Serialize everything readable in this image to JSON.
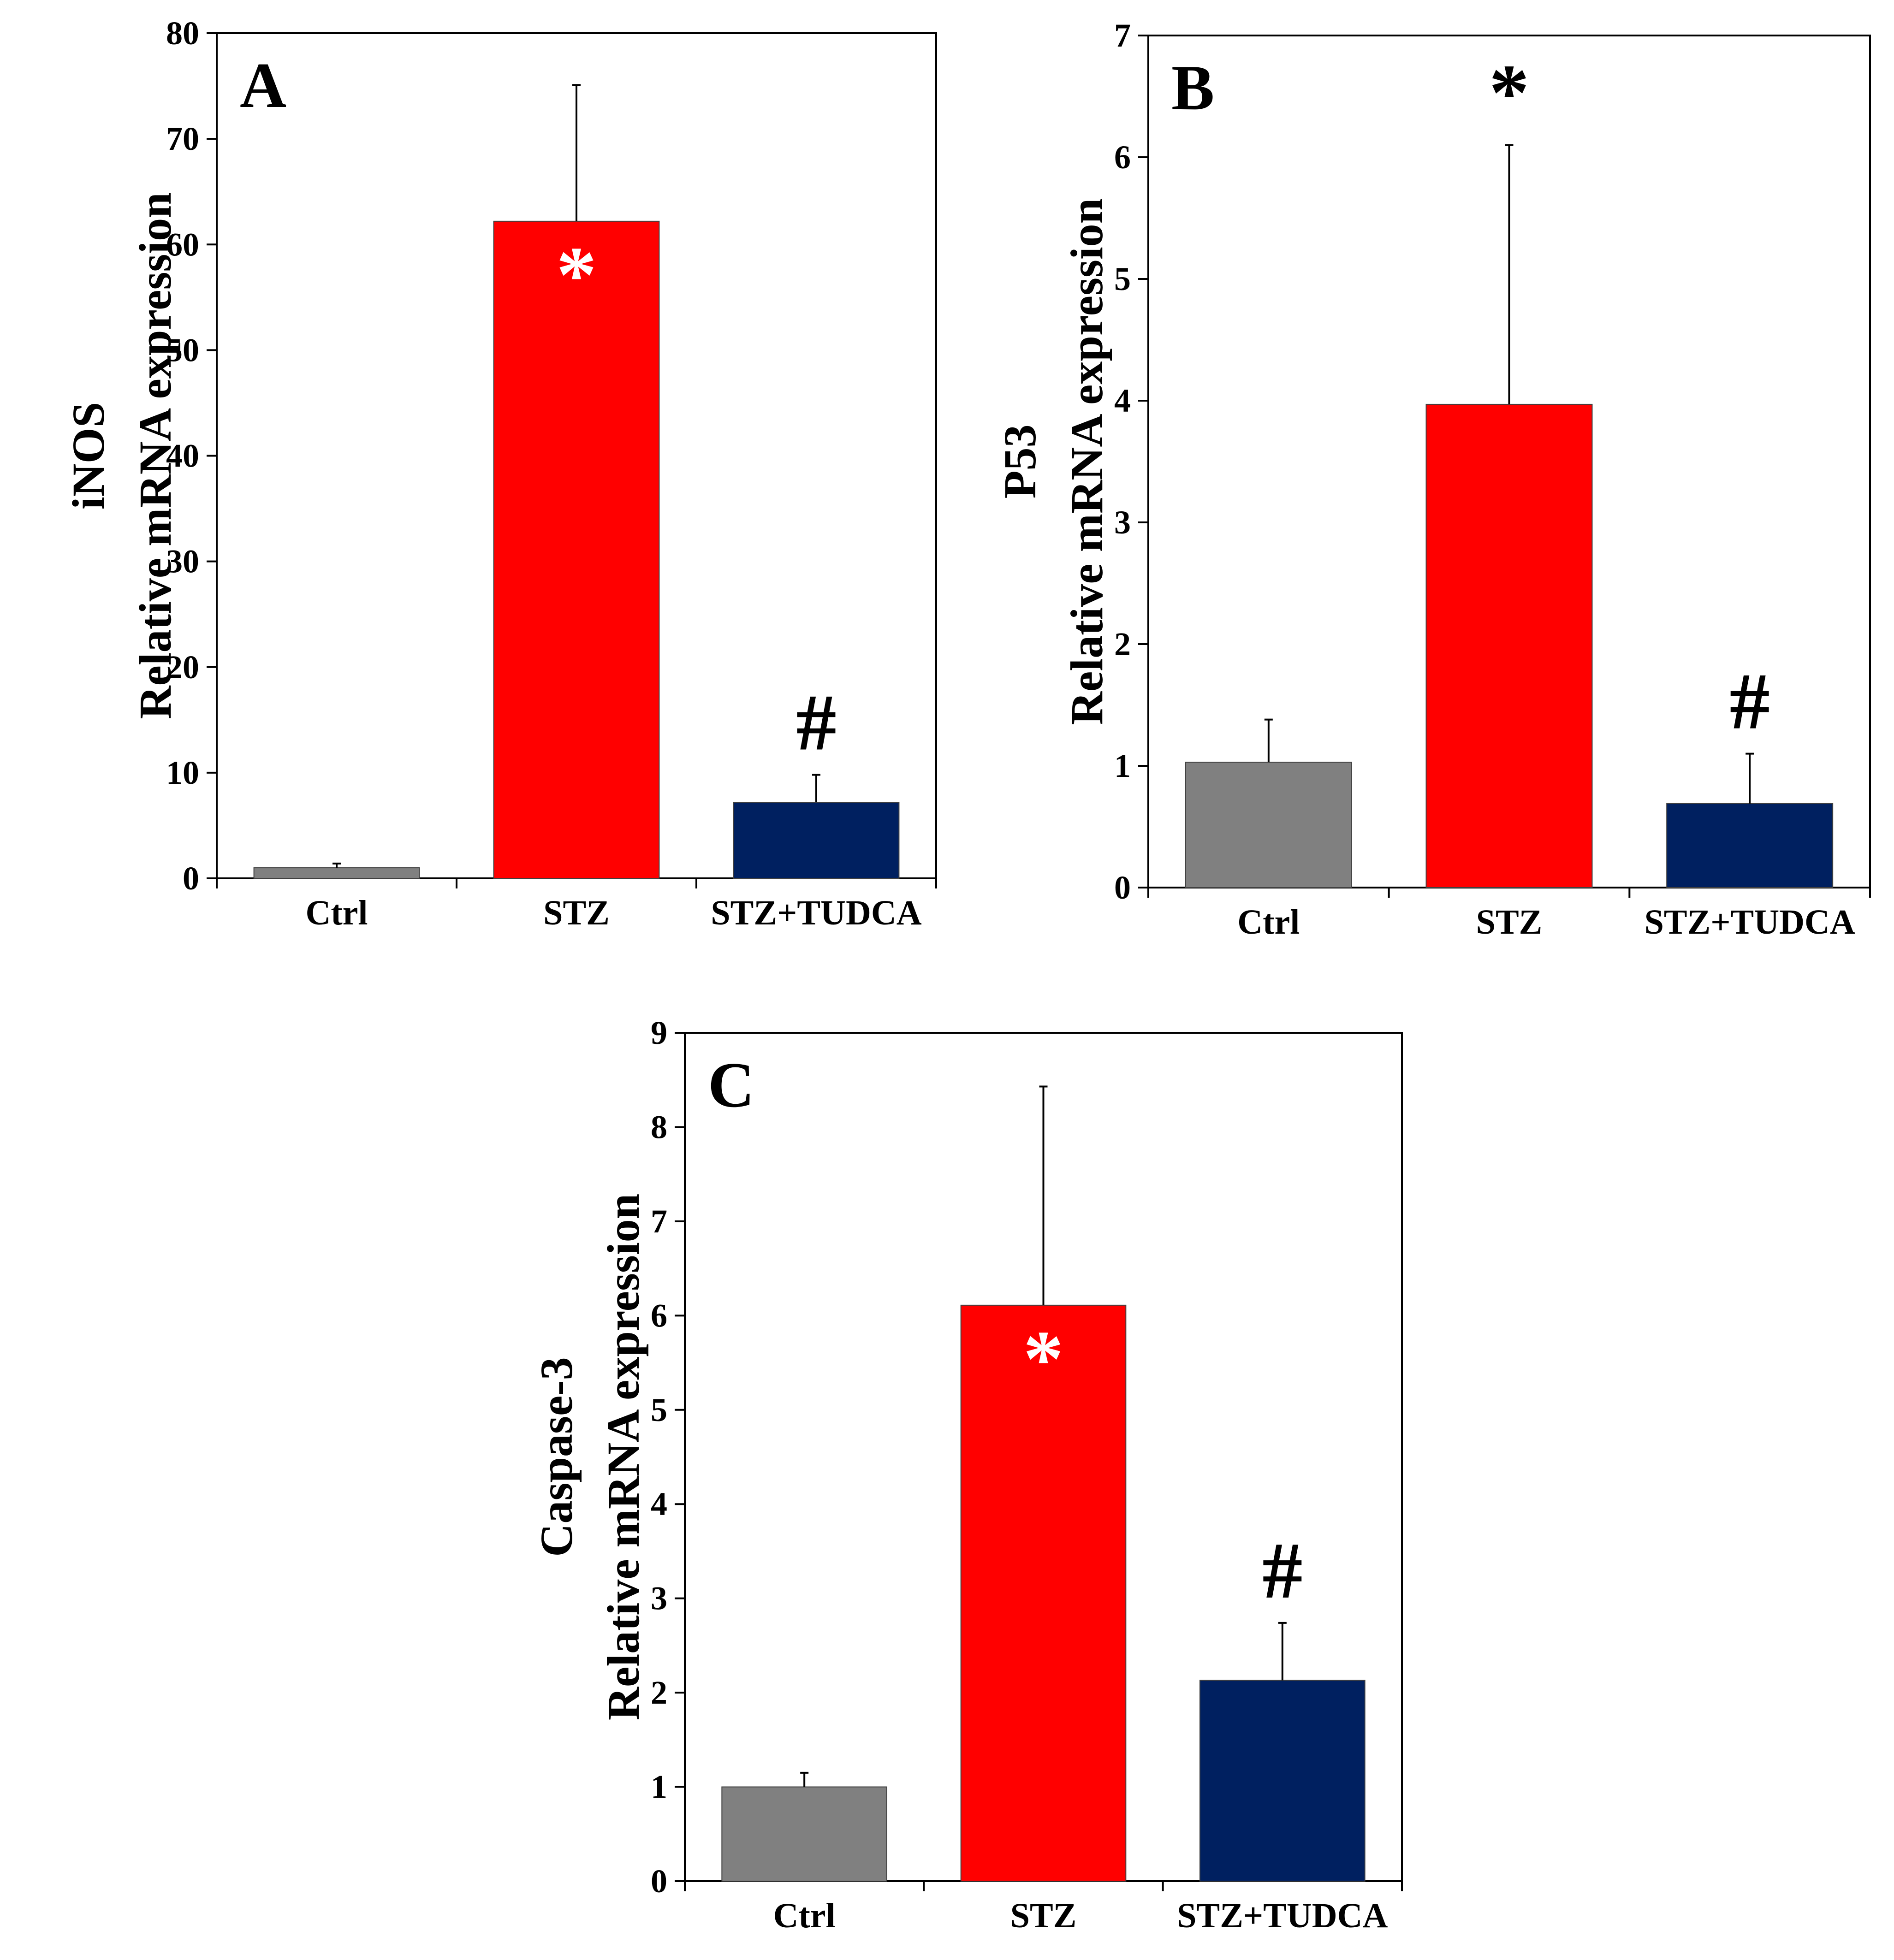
{
  "chart_data": [
    {
      "type": "bar",
      "panel": "A",
      "ylabel_gene": "iNOS",
      "ylabel": "Relative mRNA expression",
      "xlabel": "",
      "ylim": [
        0,
        80
      ],
      "yticks": [
        0,
        10,
        20,
        30,
        40,
        50,
        60,
        70,
        80
      ],
      "categories": [
        "Ctrl",
        "STZ",
        "STZ+TUDCA"
      ],
      "values": [
        1.0,
        62.2,
        7.2
      ],
      "errors": [
        0.4,
        12.9,
        2.6
      ],
      "colors": [
        "#808080",
        "#ff0000",
        "#002060"
      ],
      "annotations": [
        {
          "category": "STZ",
          "text": "*",
          "placement": "inside",
          "color": "#ffffff"
        },
        {
          "category": "STZ+TUDCA",
          "text": "#",
          "placement": "above",
          "color": "#000000"
        }
      ]
    },
    {
      "type": "bar",
      "panel": "B",
      "ylabel_gene": "P53",
      "ylabel": "Relative mRNA expression",
      "xlabel": "",
      "ylim": [
        0,
        7
      ],
      "yticks": [
        0,
        1,
        2,
        3,
        4,
        5,
        6,
        7
      ],
      "categories": [
        "Ctrl",
        "STZ",
        "STZ+TUDCA"
      ],
      "values": [
        1.03,
        3.97,
        0.69
      ],
      "errors": [
        0.35,
        2.13,
        0.41
      ],
      "colors": [
        "#808080",
        "#ff0000",
        "#002060"
      ],
      "annotations": [
        {
          "category": "STZ",
          "text": "*",
          "placement": "above",
          "color": "#000000"
        },
        {
          "category": "STZ+TUDCA",
          "text": "#",
          "placement": "above",
          "color": "#000000"
        }
      ]
    },
    {
      "type": "bar",
      "panel": "C",
      "ylabel_gene": "Caspase-3",
      "ylabel": "Relative mRNA expression",
      "xlabel": "",
      "ylim": [
        0,
        9
      ],
      "yticks": [
        0,
        1,
        2,
        3,
        4,
        5,
        6,
        7,
        8,
        9
      ],
      "categories": [
        "Ctrl",
        "STZ",
        "STZ+TUDCA"
      ],
      "values": [
        1.0,
        6.11,
        2.13
      ],
      "errors": [
        0.15,
        2.32,
        0.61
      ],
      "colors": [
        "#808080",
        "#ff0000",
        "#002060"
      ],
      "annotations": [
        {
          "category": "STZ",
          "text": "*",
          "placement": "inside",
          "color": "#ffffff"
        },
        {
          "category": "STZ+TUDCA",
          "text": "#",
          "placement": "above",
          "color": "#000000"
        }
      ]
    }
  ]
}
